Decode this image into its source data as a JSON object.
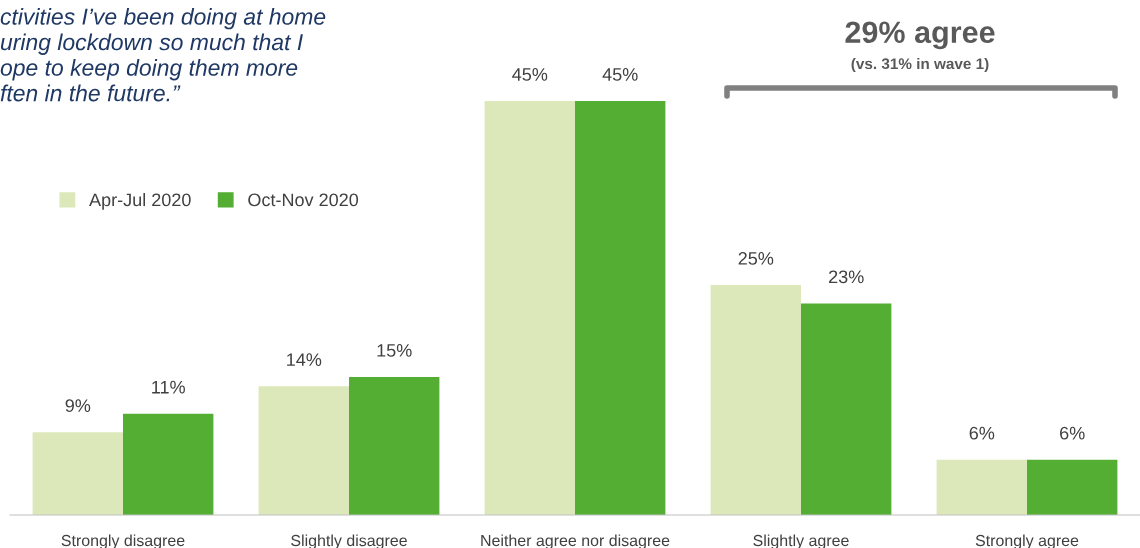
{
  "chart_data": {
    "type": "bar",
    "categories": [
      "Strongly disagree",
      "Slightly disagree",
      "Neither agree nor disagree",
      "Slightly agree",
      "Strongly agree"
    ],
    "series": [
      {
        "name": "Apr-Jul 2020",
        "color": "#dde8ba",
        "values": [
          9,
          14,
          45,
          25,
          6
        ],
        "value_labels": [
          "9%",
          "14%",
          "45%",
          "25%",
          "6%"
        ]
      },
      {
        "name": "Oct-Nov 2020",
        "color": "#55ae34",
        "values": [
          11,
          15,
          45,
          23,
          6
        ],
        "value_labels": [
          "11%",
          "15%",
          "45%",
          "23%",
          "6%"
        ]
      }
    ],
    "legend": "top left",
    "grid": false,
    "annotations": [
      "ctivities I’ve been doing at home\nuring lockdown so much that I\nope to keep doing them more\nften in the future.”",
      "29% agree",
      "(vs. 31% in wave 1)"
    ]
  }
}
